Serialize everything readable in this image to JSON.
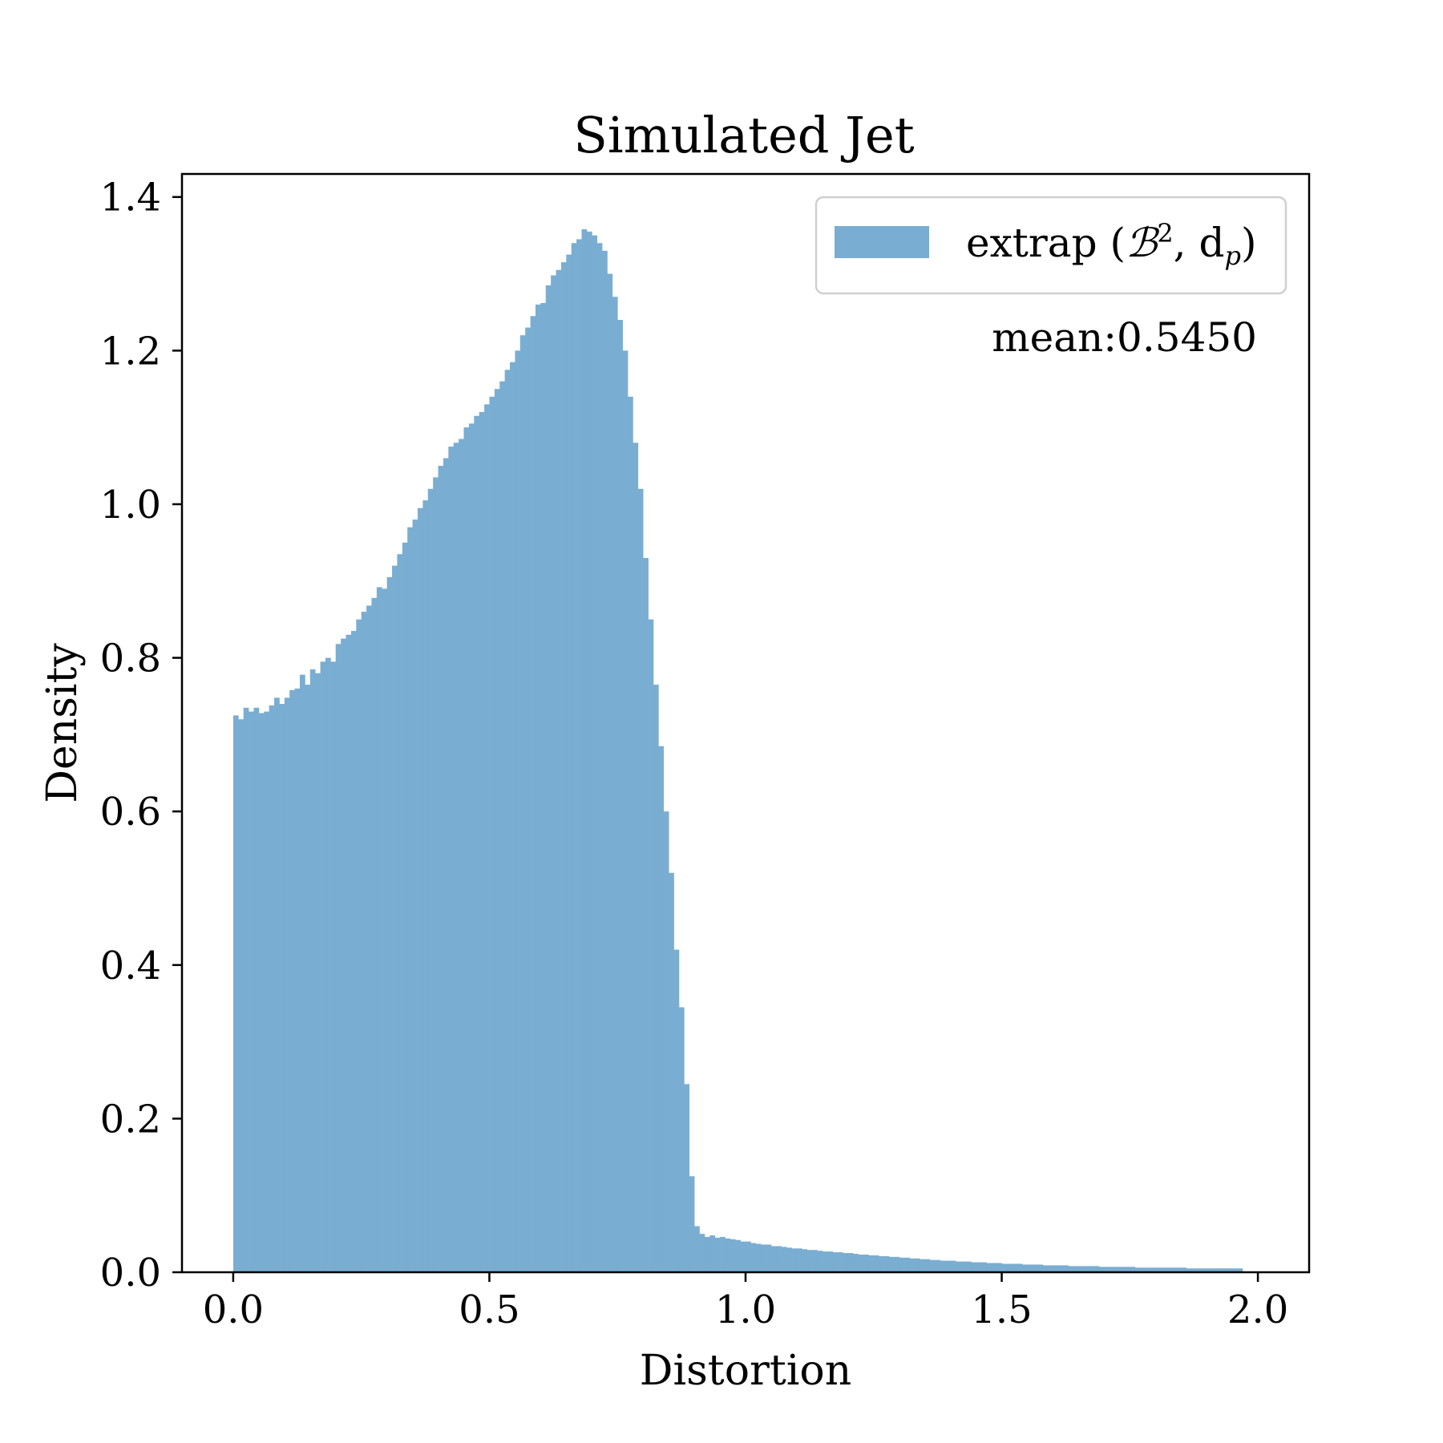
{
  "chart_data": {
    "type": "bar",
    "title": "Simulated Jet",
    "xlabel": "Distortion",
    "ylabel": "Density",
    "xlim": [
      -0.1,
      2.1
    ],
    "ylim": [
      0.0,
      1.43
    ],
    "xticks": [
      0.0,
      0.5,
      1.0,
      1.5,
      2.0
    ],
    "xtick_labels": [
      "0.0",
      "0.5",
      "1.0",
      "1.5",
      "2.0"
    ],
    "yticks": [
      0.0,
      0.2,
      0.4,
      0.6,
      0.8,
      1.0,
      1.2,
      1.4
    ],
    "ytick_labels": [
      "0.0",
      "0.2",
      "0.4",
      "0.6",
      "0.8",
      "1.0",
      "1.2",
      "1.4"
    ],
    "grid": false,
    "legend": {
      "placement": "top-right",
      "entries": [
        {
          "label_main": "extrap (",
          "label_math": "ℬ",
          "label_sup": "2",
          "label_mid": ", d",
          "label_sub": "p",
          "label_end": ")",
          "color": "#7aadd2"
        }
      ]
    },
    "annotation": "mean:0.5450",
    "bin_start": 0.0,
    "bin_width": 0.01,
    "bar_color": "#7aadd2",
    "series": [
      {
        "values": [
          0.725,
          0.72,
          0.735,
          0.73,
          0.735,
          0.728,
          0.73,
          0.738,
          0.748,
          0.74,
          0.748,
          0.758,
          0.76,
          0.778,
          0.765,
          0.785,
          0.78,
          0.795,
          0.8,
          0.795,
          0.818,
          0.825,
          0.83,
          0.835,
          0.85,
          0.86,
          0.868,
          0.878,
          0.892,
          0.89,
          0.905,
          0.92,
          0.935,
          0.95,
          0.97,
          0.98,
          0.995,
          1.005,
          1.02,
          1.035,
          1.05,
          1.06,
          1.075,
          1.08,
          1.085,
          1.1,
          1.105,
          1.115,
          1.12,
          1.13,
          1.14,
          1.15,
          1.16,
          1.175,
          1.185,
          1.2,
          1.22,
          1.23,
          1.245,
          1.26,
          1.262,
          1.285,
          1.298,
          1.305,
          1.315,
          1.325,
          1.34,
          1.345,
          1.358,
          1.355,
          1.35,
          1.34,
          1.33,
          1.3,
          1.27,
          1.24,
          1.2,
          1.14,
          1.08,
          1.02,
          0.93,
          0.85,
          0.765,
          0.685,
          0.6,
          0.52,
          0.42,
          0.345,
          0.245,
          0.125,
          0.06,
          0.05,
          0.046,
          0.048,
          0.045,
          0.046,
          0.044,
          0.043,
          0.042,
          0.04,
          0.04,
          0.038,
          0.037,
          0.036,
          0.036,
          0.034,
          0.034,
          0.033,
          0.032,
          0.031,
          0.031,
          0.03,
          0.029,
          0.029,
          0.028,
          0.027,
          0.027,
          0.026,
          0.026,
          0.025,
          0.025,
          0.024,
          0.023,
          0.023,
          0.022,
          0.022,
          0.021,
          0.021,
          0.02,
          0.02,
          0.019,
          0.019,
          0.018,
          0.018,
          0.017,
          0.017,
          0.016,
          0.016,
          0.015,
          0.015,
          0.015,
          0.014,
          0.014,
          0.014,
          0.013,
          0.013,
          0.013,
          0.012,
          0.012,
          0.012,
          0.011,
          0.011,
          0.011,
          0.011,
          0.01,
          0.01,
          0.01,
          0.01,
          0.009,
          0.009,
          0.009,
          0.009,
          0.009,
          0.008,
          0.008,
          0.008,
          0.008,
          0.008,
          0.008,
          0.007,
          0.007,
          0.007,
          0.007,
          0.007,
          0.007,
          0.007,
          0.006,
          0.006,
          0.006,
          0.006,
          0.006,
          0.006,
          0.006,
          0.006,
          0.006,
          0.006,
          0.005,
          0.005,
          0.005,
          0.005,
          0.005,
          0.005,
          0.005,
          0.005,
          0.005,
          0.005,
          0.005
        ]
      }
    ]
  }
}
